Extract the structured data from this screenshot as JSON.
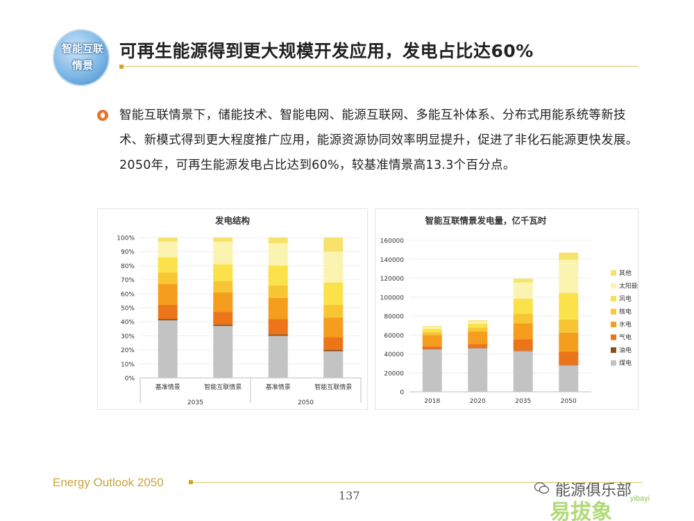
{
  "header": {
    "logo_line1": "智能互联",
    "logo_line2": "情景",
    "title": "可再生能源得到更大规模开发应用，发电占比达60%"
  },
  "body": {
    "paragraph": "智能互联情景下，储能技术、智能电网、能源互联网、多能互补体系、分布式用能系统等新技术、新模式得到更大程度推广应用，能源资源协同效率明显提升，促进了非化石能源更快发展。2050年，可再生能源发电占比达到60%，较基准情景高13.3个百分点。"
  },
  "legend": {
    "items": [
      {
        "label": "其他",
        "color": "#f7e36a"
      },
      {
        "label": "太阳能",
        "color": "#fbf3b0"
      },
      {
        "label": "风电",
        "color": "#fbe24a"
      },
      {
        "label": "核电",
        "color": "#f8c632"
      },
      {
        "label": "水电",
        "color": "#f59d1c"
      },
      {
        "label": "气电",
        "color": "#ec7419"
      },
      {
        "label": "油电",
        "color": "#8c4d1a"
      },
      {
        "label": "煤电",
        "color": "#c3c3c3"
      }
    ]
  },
  "chart_data": [
    {
      "type": "bar",
      "stacked": true,
      "percent": true,
      "title": "发电结构",
      "categories": [
        "基准情景",
        "智能互联情景",
        "基准情景",
        "智能互联情景"
      ],
      "groups": [
        {
          "label": "2035",
          "span": 2
        },
        {
          "label": "2050",
          "span": 2
        }
      ],
      "ylim": [
        0,
        100
      ],
      "yticks": [
        "0%",
        "10%",
        "20%",
        "30%",
        "40%",
        "50%",
        "60%",
        "70%",
        "80%",
        "90%",
        "100%"
      ],
      "series": [
        {
          "name": "煤电",
          "values": [
            41,
            37,
            30,
            19
          ]
        },
        {
          "name": "油电",
          "values": [
            1,
            1,
            1,
            1
          ]
        },
        {
          "name": "气电",
          "values": [
            10,
            9,
            11,
            9
          ]
        },
        {
          "name": "水电",
          "values": [
            15,
            14,
            15,
            14
          ]
        },
        {
          "name": "核电",
          "values": [
            8,
            8,
            9,
            9
          ]
        },
        {
          "name": "风电",
          "values": [
            11,
            12,
            14,
            16
          ]
        },
        {
          "name": "太阳能",
          "values": [
            11,
            16,
            16,
            22
          ]
        },
        {
          "name": "其他",
          "values": [
            3,
            3,
            4,
            10
          ]
        }
      ]
    },
    {
      "type": "bar",
      "stacked": true,
      "title": "智能互联情景发电量，亿千瓦时",
      "categories": [
        "2018",
        "2020",
        "2035",
        "2050"
      ],
      "ylim": [
        0,
        160000
      ],
      "yticks": [
        "0",
        "20000",
        "40000",
        "60000",
        "80000",
        "100000",
        "120000",
        "140000",
        "160000"
      ],
      "series": [
        {
          "name": "煤电",
          "values": [
            45000,
            46000,
            43000,
            28000
          ]
        },
        {
          "name": "油电",
          "values": [
            500,
            500,
            500,
            500
          ]
        },
        {
          "name": "气电",
          "values": [
            2500,
            4000,
            12000,
            14000
          ]
        },
        {
          "name": "水电",
          "values": [
            12000,
            13000,
            17000,
            20000
          ]
        },
        {
          "name": "核电",
          "values": [
            3000,
            4000,
            10000,
            14000
          ]
        },
        {
          "name": "风电",
          "values": [
            3500,
            4500,
            16000,
            28000
          ]
        },
        {
          "name": "太阳能",
          "values": [
            2000,
            2500,
            17000,
            35000
          ]
        },
        {
          "name": "其他",
          "values": [
            1000,
            1000,
            4000,
            7500
          ]
        }
      ]
    }
  ],
  "footer": {
    "brand": "Energy Outlook 2050",
    "page": "137",
    "watermark_cn": "能源俱乐部",
    "watermark_logo": "易拔象",
    "watermark_site": "yibayi"
  }
}
